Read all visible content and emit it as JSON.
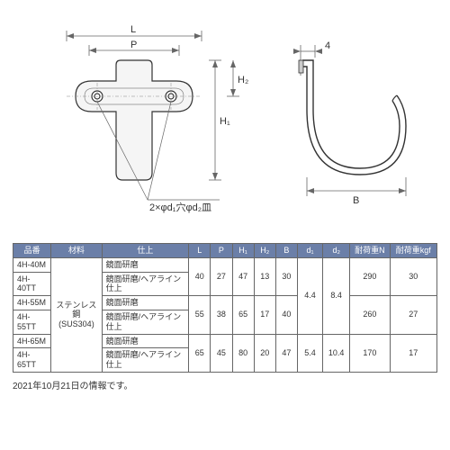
{
  "diagram": {
    "stroke": "#333333",
    "thin": "#666666",
    "labels": {
      "L": "L",
      "P": "P",
      "H1": "H₁",
      "H2": "H₂",
      "B": "B",
      "d_note": "2×φd₁穴φd₂皿",
      "four": "4"
    }
  },
  "table": {
    "header_bg": "#6b7fa8",
    "header_fg": "#ffffff",
    "columns": [
      "品番",
      "材料",
      "仕上",
      "L",
      "P",
      "H₁",
      "H₂",
      "B",
      "d₁",
      "d₂",
      "耐荷重N",
      "耐荷重kgf"
    ],
    "col_widths": [
      "42px",
      "56px",
      "96px",
      "24px",
      "24px",
      "24px",
      "24px",
      "24px",
      "28px",
      "30px",
      "44px",
      "52px"
    ],
    "material": "ステンレス鋼\n(SUS304)",
    "rows": [
      {
        "pn": "4H-40M",
        "finish": "鏡面研磨"
      },
      {
        "pn": "4H-40TT",
        "finish": "鏡面研磨/ヘアライン仕上"
      },
      {
        "pn": "4H-55M",
        "finish": "鏡面研磨"
      },
      {
        "pn": "4H-55TT",
        "finish": "鏡面研磨/ヘアライン仕上"
      },
      {
        "pn": "4H-65M",
        "finish": "鏡面研磨"
      },
      {
        "pn": "4H-65TT",
        "finish": "鏡面研磨/ヘアライン仕上"
      }
    ],
    "group40": {
      "L": "40",
      "P": "27",
      "H1": "47",
      "H2": "13",
      "B": "30"
    },
    "group55": {
      "L": "55",
      "P": "38",
      "H1": "65",
      "H2": "17",
      "B": "40"
    },
    "group65": {
      "L": "65",
      "P": "45",
      "H1": "80",
      "H2": "20",
      "B": "47"
    },
    "d1_small": "4.4",
    "d2_small": "8.4",
    "d1_large": "5.4",
    "d2_large": "10.4",
    "load40": {
      "N": "290",
      "kgf": "30"
    },
    "load55": {
      "N": "260",
      "kgf": "27"
    },
    "load65": {
      "N": "170",
      "kgf": "17"
    }
  },
  "note": "2021年10月21日の情報です。"
}
